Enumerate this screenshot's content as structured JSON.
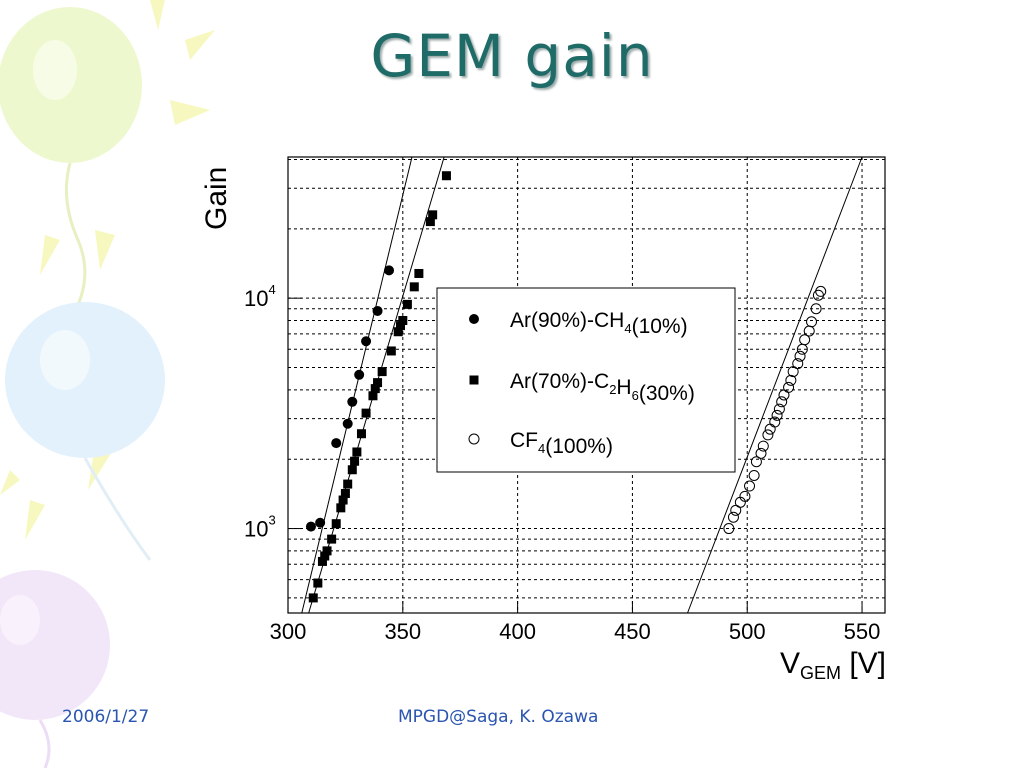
{
  "slide": {
    "title": "GEM gain",
    "footer_date": "2006/1/27",
    "footer_center": "MPGD@Saga, K. Ozawa"
  },
  "colors": {
    "title": "#1f6b68",
    "footer": "#2a55b0",
    "balloon_green": "#eaf7c8",
    "balloon_blue": "#dceefa",
    "balloon_purple": "#efe0f8",
    "sun_rays": "#f6f7b0"
  },
  "chart_data": {
    "type": "scatter",
    "xlabel_main": "V",
    "xlabel_sub": "GEM",
    "xlabel_unit": " [V]",
    "ylabel": "Gain",
    "x_scale": "linear",
    "y_scale": "log",
    "xlim": [
      300,
      560
    ],
    "ylim": [
      430,
      41000
    ],
    "x_ticks": [
      300,
      350,
      400,
      450,
      500,
      550
    ],
    "y_ticks": [
      {
        "value": 1000,
        "base": "10",
        "exp": "3"
      },
      {
        "value": 10000,
        "base": "10",
        "exp": "4"
      }
    ],
    "grid": true,
    "legend_position": "center",
    "series": [
      {
        "name": "Ar(90%)-CH4(10%)",
        "legend_parts": [
          [
            "Ar(90%)-CH",
            "4"
          ],
          [
            "(10%)",
            ""
          ]
        ],
        "marker": "filled-circle",
        "points": [
          [
            310,
            1020
          ],
          [
            314,
            1060
          ],
          [
            321,
            2350
          ],
          [
            326,
            2850
          ],
          [
            328,
            3550
          ],
          [
            331,
            4650
          ],
          [
            334,
            6500
          ],
          [
            339,
            8800
          ],
          [
            344,
            13200
          ]
        ],
        "fit_line": [
          [
            306,
            430
          ],
          [
            354,
            41000
          ]
        ]
      },
      {
        "name": "Ar(70%)-C2H6(30%)",
        "legend_parts": [
          [
            "Ar(70%)-C",
            "2"
          ],
          [
            "H",
            "6"
          ],
          [
            "(30%)",
            ""
          ]
        ],
        "marker": "filled-square",
        "points": [
          [
            311,
            500
          ],
          [
            313,
            580
          ],
          [
            315,
            720
          ],
          [
            316,
            760
          ],
          [
            317,
            800
          ],
          [
            319,
            900
          ],
          [
            321,
            1050
          ],
          [
            323,
            1230
          ],
          [
            324,
            1330
          ],
          [
            325,
            1420
          ],
          [
            326,
            1560
          ],
          [
            328,
            1800
          ],
          [
            329,
            1960
          ],
          [
            330,
            2150
          ],
          [
            332,
            2580
          ],
          [
            334,
            3170
          ],
          [
            337,
            3770
          ],
          [
            338,
            4050
          ],
          [
            339,
            4300
          ],
          [
            341,
            4800
          ],
          [
            345,
            5900
          ],
          [
            348,
            7150
          ],
          [
            349,
            7600
          ],
          [
            350,
            8000
          ],
          [
            352,
            9400
          ],
          [
            355,
            11200
          ],
          [
            357,
            12800
          ],
          [
            362,
            21500
          ],
          [
            363,
            23000
          ],
          [
            369,
            34000
          ]
        ],
        "fit_line": [
          [
            309,
            430
          ],
          [
            368,
            41000
          ]
        ]
      },
      {
        "name": "CF4(100%)",
        "legend_parts": [
          [
            "CF",
            "4"
          ],
          [
            "(100%)",
            ""
          ]
        ],
        "marker": "open-circle",
        "points": [
          [
            492,
            1000
          ],
          [
            494,
            1120
          ],
          [
            495,
            1200
          ],
          [
            497,
            1300
          ],
          [
            499,
            1380
          ],
          [
            501,
            1530
          ],
          [
            503,
            1700
          ],
          [
            504,
            1950
          ],
          [
            506,
            2120
          ],
          [
            507,
            2280
          ],
          [
            509,
            2550
          ],
          [
            510,
            2700
          ],
          [
            512,
            2900
          ],
          [
            513,
            3100
          ],
          [
            514,
            3300
          ],
          [
            515,
            3550
          ],
          [
            516,
            3800
          ],
          [
            518,
            4100
          ],
          [
            519,
            4400
          ],
          [
            520,
            4800
          ],
          [
            522,
            5200
          ],
          [
            523,
            5600
          ],
          [
            524,
            6000
          ],
          [
            525,
            6600
          ],
          [
            527,
            7200
          ],
          [
            528,
            7900
          ],
          [
            530,
            9000
          ],
          [
            531,
            10300
          ],
          [
            532,
            10700
          ]
        ],
        "fit_line": [
          [
            474,
            430
          ],
          [
            550,
            41000
          ]
        ]
      }
    ]
  }
}
